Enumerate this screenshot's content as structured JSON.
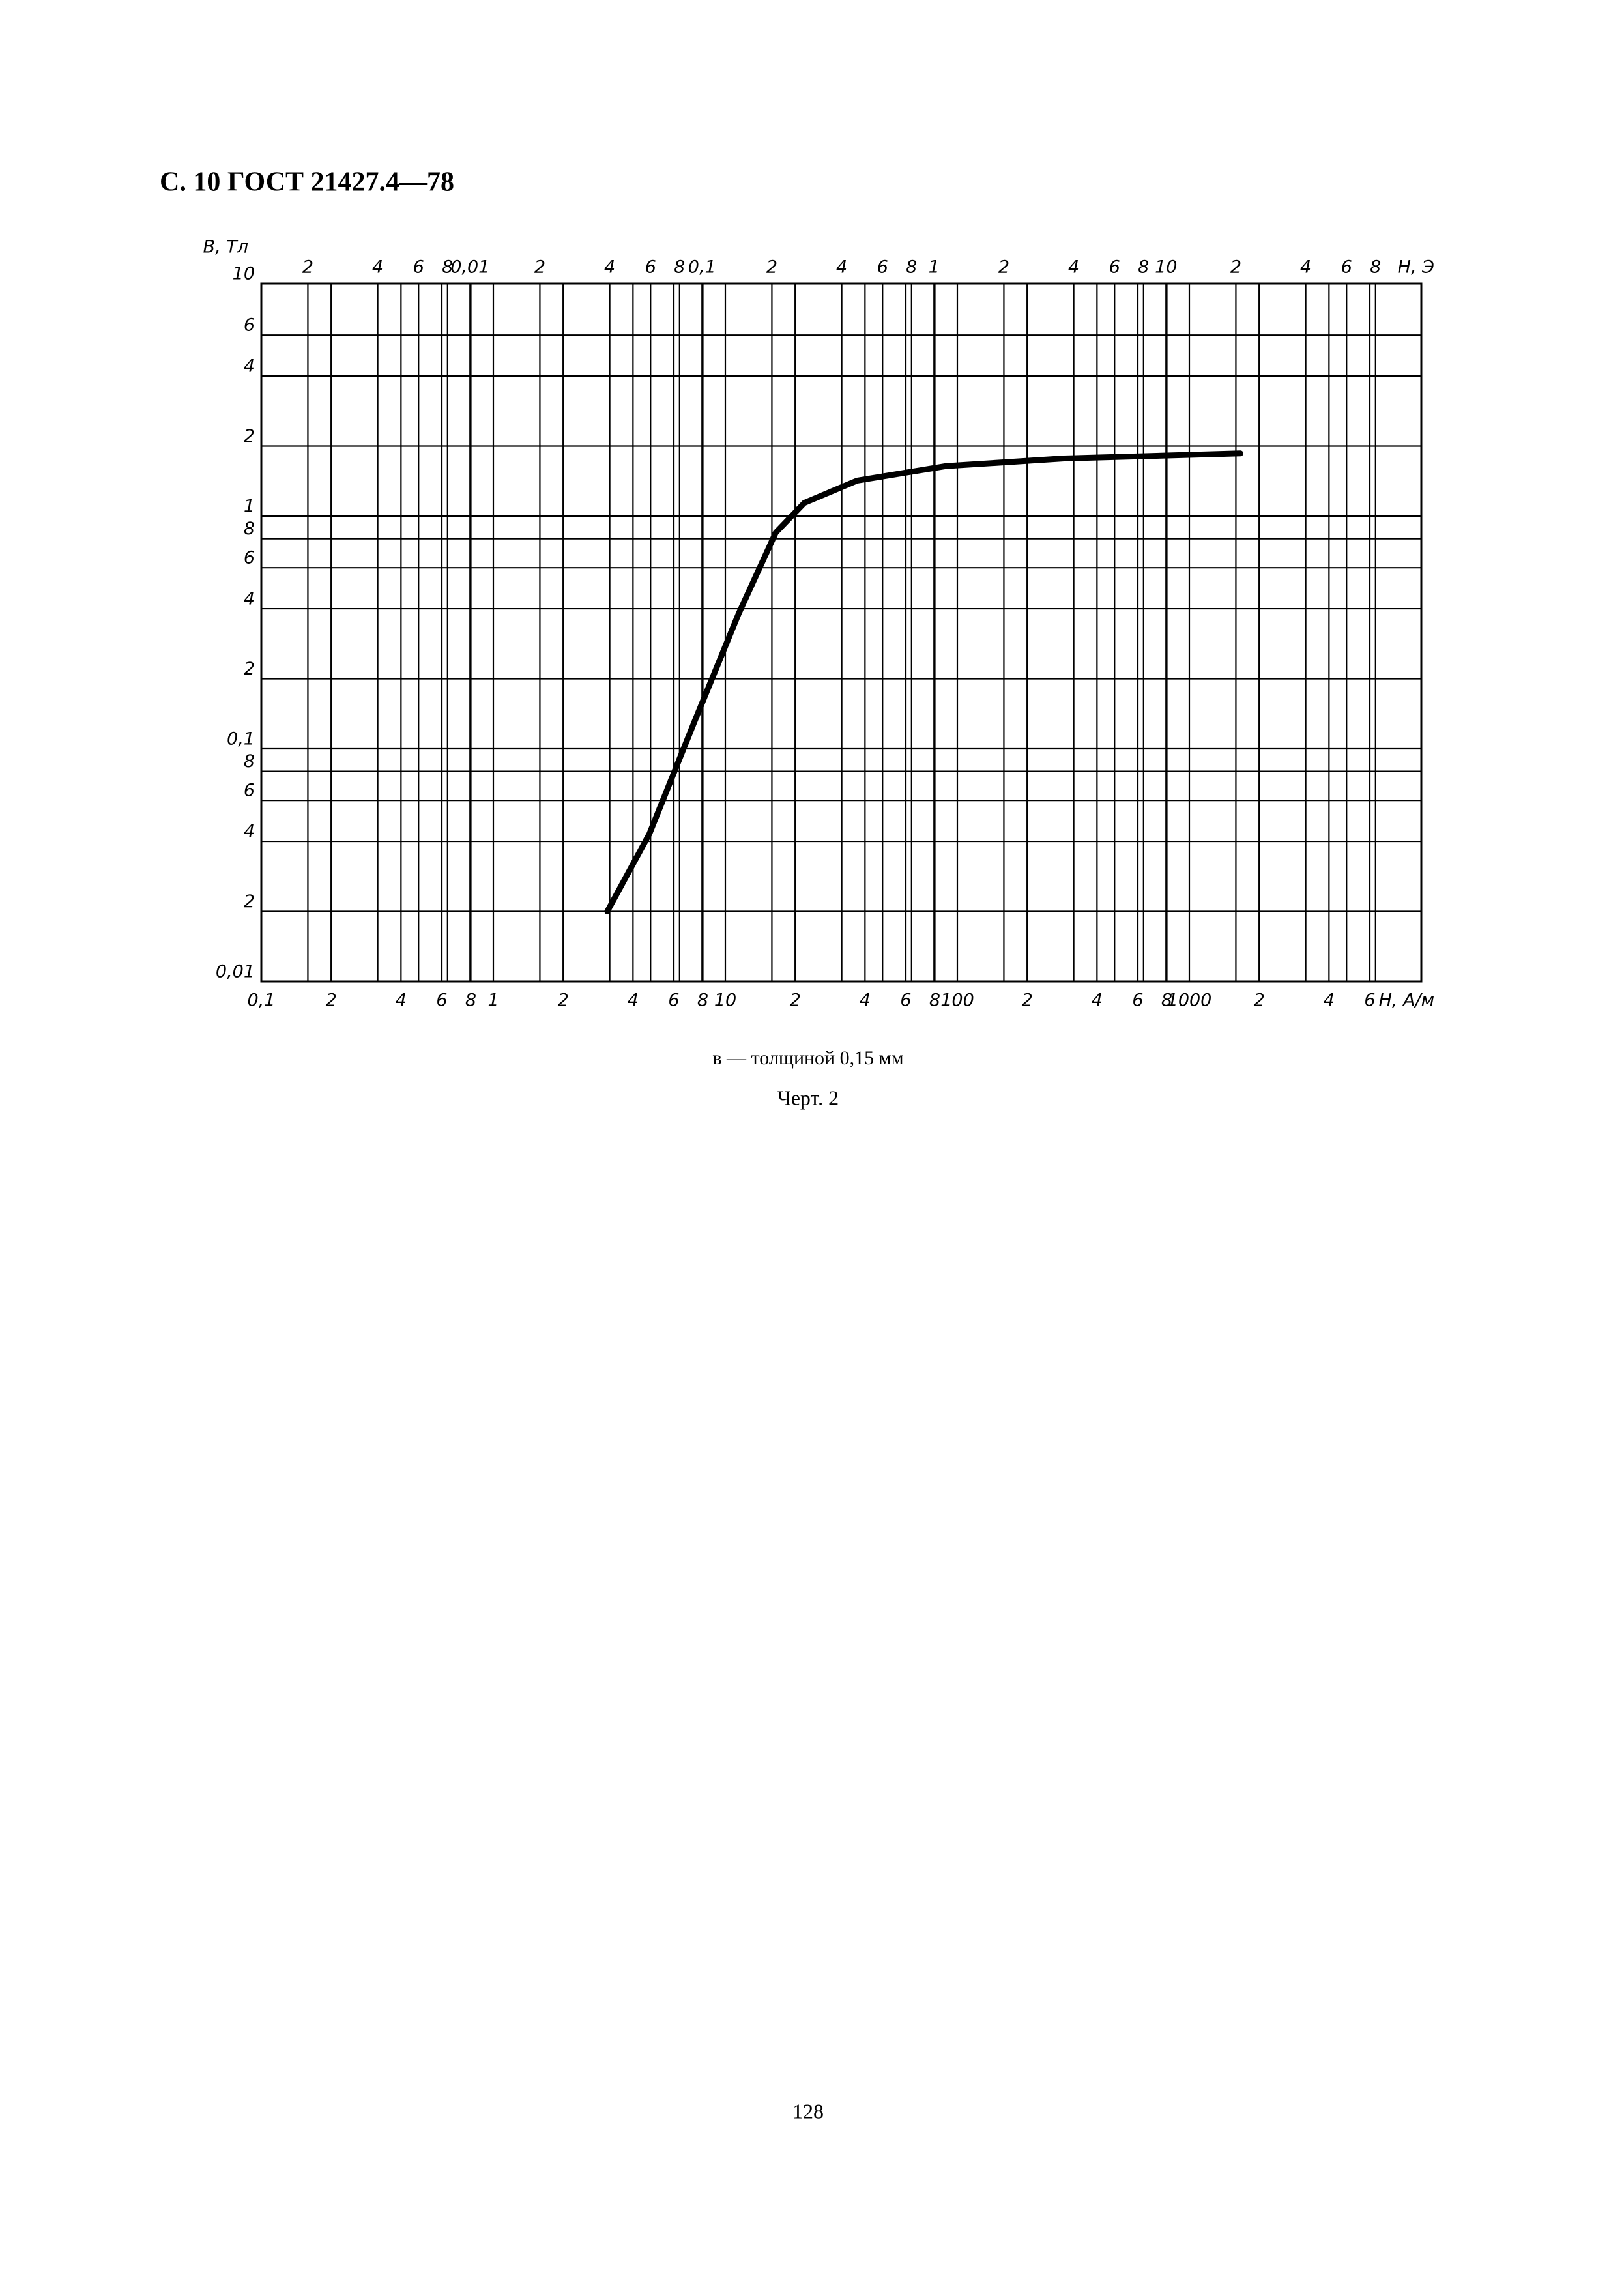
{
  "header": {
    "title": "С. 10 ГОСТ 21427.4—78"
  },
  "chart_data": {
    "type": "line",
    "y_label": "В, Тл",
    "x_label": "Н, А/м",
    "x2_label": "Н, Э",
    "x": [
      3.1,
      4.7,
      7.3,
      11.4,
      16.5,
      21.9,
      36.9,
      89,
      288,
      1660
    ],
    "values": [
      0.02,
      0.043,
      0.128,
      0.38,
      0.85,
      1.14,
      1.42,
      1.64,
      1.77,
      1.86
    ],
    "color": "#000000",
    "xscale": "log",
    "yscale": "log",
    "grid": true,
    "xlim": [
      0.1,
      10000
    ],
    "ylim": [
      0.01,
      10
    ],
    "x2lim": [
      0.00126,
      126
    ],
    "xticks": [
      {
        "value": 0.1,
        "label": "0,1"
      },
      {
        "value": 0.2,
        "label": "2"
      },
      {
        "value": 0.4,
        "label": "4"
      },
      {
        "value": 0.6,
        "label": "6"
      },
      {
        "value": 0.8,
        "label": "8"
      },
      1,
      2,
      4,
      6,
      8,
      10,
      {
        "value": 20,
        "label": "2"
      },
      {
        "value": 40,
        "label": "4"
      },
      {
        "value": 60,
        "label": "6"
      },
      {
        "value": 80,
        "label": "8"
      },
      100,
      {
        "value": 200,
        "label": "2"
      },
      {
        "value": 400,
        "label": "4"
      },
      {
        "value": 600,
        "label": "6"
      },
      {
        "value": 800,
        "label": "8"
      },
      1000,
      {
        "value": 2000,
        "label": "2"
      },
      {
        "value": 4000,
        "label": "4"
      },
      {
        "value": 6000,
        "label": "6"
      }
    ],
    "x2ticks": [
      {
        "value": 0.002,
        "label": "2"
      },
      {
        "value": 0.004,
        "label": "4"
      },
      {
        "value": 0.006,
        "label": "6"
      },
      {
        "value": 0.008,
        "label": "8"
      },
      {
        "value": 0.01,
        "label": "0,01"
      },
      {
        "value": 0.02,
        "label": "2"
      },
      {
        "value": 0.04,
        "label": "4"
      },
      {
        "value": 0.06,
        "label": "6"
      },
      {
        "value": 0.08,
        "label": "8"
      },
      {
        "value": 0.1,
        "label": "0,1"
      },
      {
        "value": 0.2,
        "label": "2"
      },
      {
        "value": 0.4,
        "label": "4"
      },
      {
        "value": 0.6,
        "label": "6"
      },
      {
        "value": 0.8,
        "label": "8"
      },
      1,
      2,
      4,
      6,
      8,
      10,
      {
        "value": 20,
        "label": "2"
      },
      {
        "value": 40,
        "label": "4"
      },
      {
        "value": 60,
        "label": "6"
      },
      {
        "value": 80,
        "label": "8"
      }
    ],
    "yticks": [
      {
        "value": 0.01,
        "label": "0,01"
      },
      {
        "value": 0.02,
        "label": "2"
      },
      {
        "value": 0.04,
        "label": "4"
      },
      {
        "value": 0.06,
        "label": "6"
      },
      {
        "value": 0.08,
        "label": "8"
      },
      {
        "value": 0.1,
        "label": "0,1"
      },
      {
        "value": 0.2,
        "label": "2"
      },
      {
        "value": 0.4,
        "label": "4"
      },
      {
        "value": 0.6,
        "label": "6"
      },
      {
        "value": 0.8,
        "label": "8"
      },
      1,
      2,
      4,
      6,
      10
    ]
  },
  "caption": {
    "subtitle": "в — толщиной 0,15 мм",
    "figure": "Черт. 2"
  },
  "footer": {
    "page_number": "128"
  }
}
